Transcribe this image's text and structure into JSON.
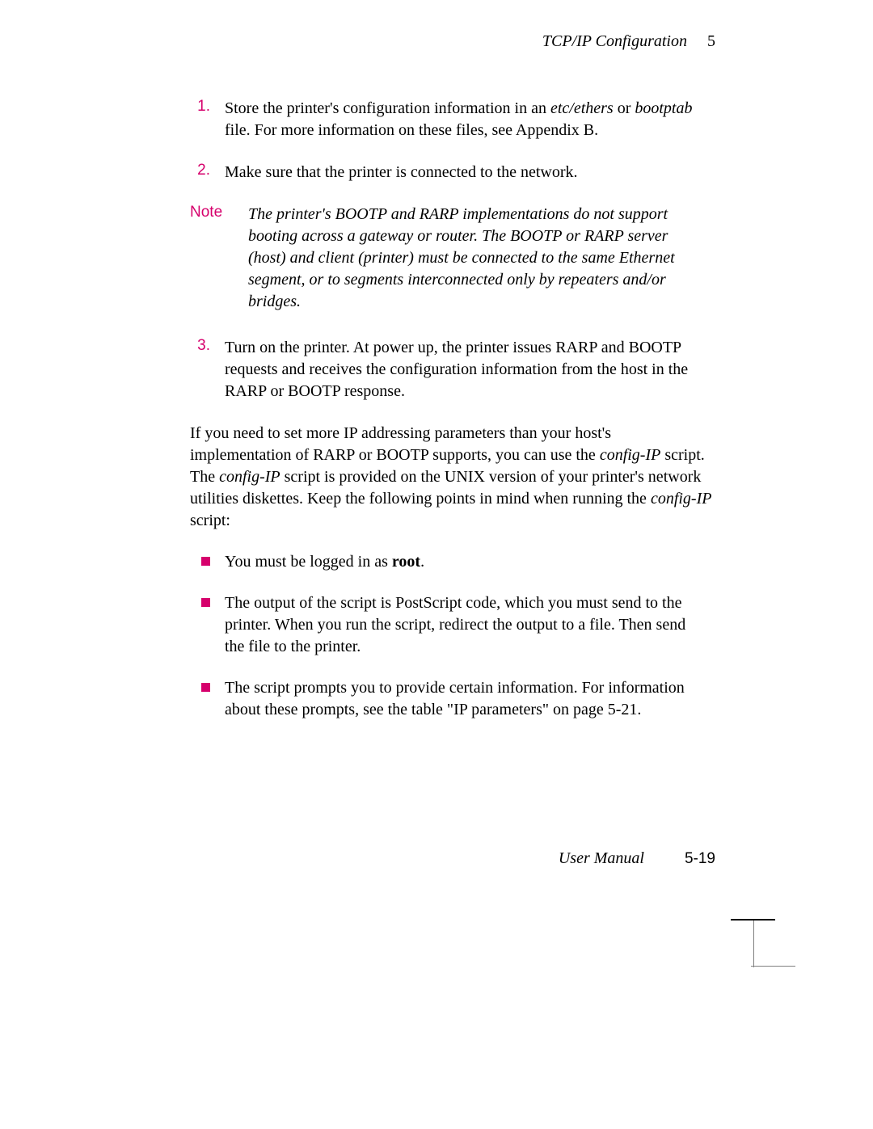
{
  "header": {
    "title": "TCP/IP Configuration",
    "chapter": "5"
  },
  "steps": {
    "s1": {
      "num": "1.",
      "text_a": "Store the printer's configuration information in an ",
      "italic_a": "etc/ethers",
      "text_b": " or ",
      "italic_b": "bootptab",
      "text_c": " file.  For more information on these files, see Appendix B."
    },
    "s2": {
      "num": "2.",
      "text": "Make sure that the printer is connected to the network."
    },
    "s3": {
      "num": "3.",
      "text": "Turn on the printer.  At power up, the printer issues RARP and BOOTP requests and receives the configuration information from the host in the RARP or BOOTP response."
    }
  },
  "note": {
    "label": "Note",
    "text": "The printer's BOOTP and RARP implementations do not support booting across a gateway or router.  The BOOTP or RARP server (host) and client (printer) must be connected to the same Ethernet segment, or to segments interconnected only by repeaters and/or bridges."
  },
  "para": {
    "t1": "If you need to set more IP addressing parameters than your host's implementation of RARP or BOOTP supports, you can use the ",
    "i1": "config-IP",
    "t2": " script.  The ",
    "i2": "config-IP",
    "t3": " script is provided on the UNIX version of your printer's network utilities diskettes.  Keep the following points in mind when running the ",
    "i3": "config-IP",
    "t4": " script:"
  },
  "bullets": {
    "b1": {
      "t1": "You must be logged in as ",
      "bold": "root",
      "t2": "."
    },
    "b2": "The output of the script is PostScript code, which you must send to the printer.  When you run the script, redirect the output to a file.  Then send the file to the printer.",
    "b3": "The script prompts you to provide certain information.  For information about these prompts, see the table \"IP parameters\" on page 5-21."
  },
  "footer": {
    "title": "User Manual",
    "page": "5-19"
  }
}
